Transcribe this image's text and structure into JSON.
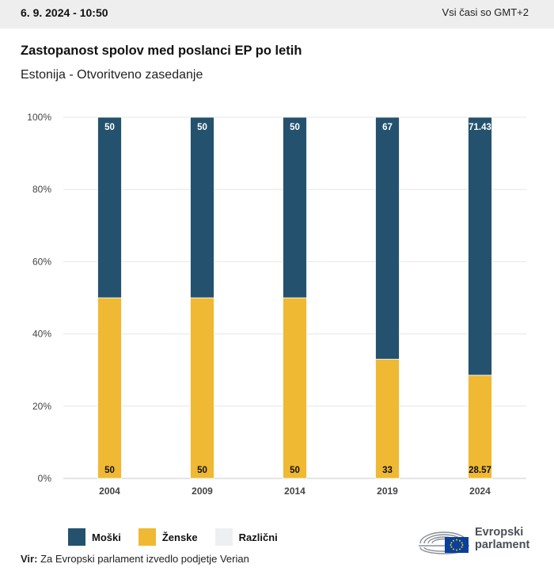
{
  "header": {
    "date": "6. 9. 2024 - 10:50",
    "timezone": "Vsi časi so GMT+2"
  },
  "chart_title": "Zastopanost spolov med poslanci EP po letih",
  "chart_subtitle": "Estonija - Otvoritveno zasedanje",
  "legend": {
    "items": [
      {
        "label": "Moški",
        "color": "#24526e"
      },
      {
        "label": "Ženske",
        "color": "#f0b933"
      },
      {
        "label": "Različni",
        "color": "#eeeff1"
      }
    ]
  },
  "source": {
    "prefix": "Vir:",
    "text": "Za Evropski parlament izvedlo podjetje Verian"
  },
  "logo": {
    "line1": "Evropski",
    "line2": "parlament",
    "icon": "european-parliament-logo"
  },
  "chart_data": {
    "type": "bar",
    "stacked": true,
    "categories": [
      "2004",
      "2009",
      "2014",
      "2019",
      "2024"
    ],
    "series": [
      {
        "name": "Ženske",
        "color": "#f0b933",
        "values": [
          50,
          50,
          50,
          33,
          28.57
        ]
      },
      {
        "name": "Moški",
        "color": "#24526e",
        "values": [
          50,
          50,
          50,
          67,
          71.43
        ]
      }
    ],
    "yticks": [
      "0%",
      "20%",
      "40%",
      "60%",
      "80%",
      "100%"
    ],
    "ylim": [
      0,
      100
    ],
    "grid": true
  }
}
